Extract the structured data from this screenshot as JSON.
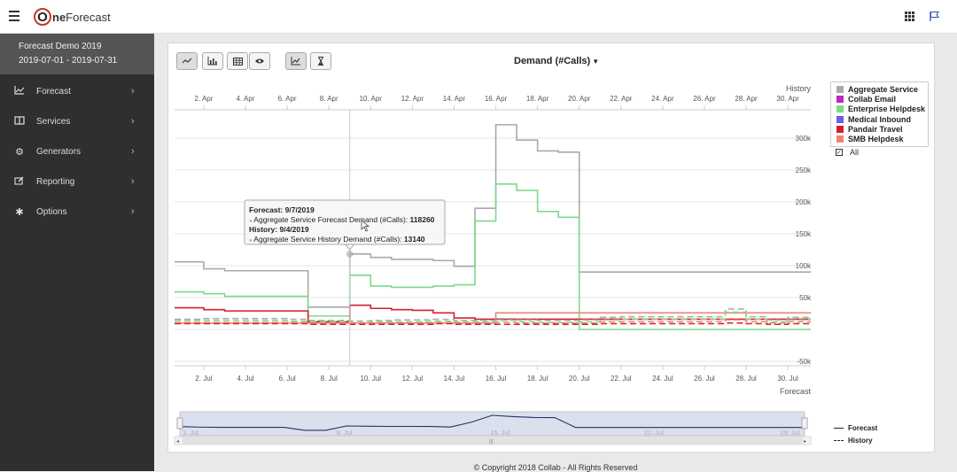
{
  "header": {
    "logo_o": "O",
    "logo_ne": "ne",
    "logo_forecast": "Forecast"
  },
  "sidebar": {
    "title": "Forecast Demo 2019",
    "date_range": "2019-07-01 - 2019-07-31",
    "items": [
      {
        "label": "Forecast",
        "icon": "line-chart-icon"
      },
      {
        "label": "Services",
        "icon": "columns-icon"
      },
      {
        "label": "Generators",
        "icon": "cogs-icon"
      },
      {
        "label": "Reporting",
        "icon": "edit-icon"
      },
      {
        "label": "Options",
        "icon": "gear-icon"
      }
    ]
  },
  "chart_title": "Demand (#Calls)",
  "legend": {
    "items": [
      {
        "label": "Aggregate Service",
        "color": "#a9a9a9"
      },
      {
        "label": "Collab Email",
        "color": "#c026c0"
      },
      {
        "label": "Enterprise Helpdesk",
        "color": "#7ed98a"
      },
      {
        "label": "Medical Inbound",
        "color": "#6a5de6"
      },
      {
        "label": "Pandair Travel",
        "color": "#d61f2c"
      },
      {
        "label": "SMB Helpdesk",
        "color": "#ee8470"
      }
    ],
    "all_label": "All",
    "forecast_label": "Forecast",
    "history_label": "History"
  },
  "tooltip": {
    "forecast_title": "Forecast: 9/7/2019",
    "forecast_label": "Aggregate Service Forecast Demand (#Calls):",
    "forecast_value": "118260",
    "history_title": "History: 9/4/2019",
    "history_label": "Aggregate Service History Demand (#Calls):",
    "history_value": "13140"
  },
  "navigator": {
    "ticks": [
      "1. Jul",
      "8. Jul",
      "15. Jul",
      "22. Jul",
      "29. Jul"
    ]
  },
  "footer": "© Copyright 2018 Collab - All Rights Reserved",
  "chart_data": {
    "type": "line",
    "title": "Demand (#Calls)",
    "top_axis_title": "History",
    "bottom_axis_title": "Forecast",
    "top_ticks": [
      "2. Apr",
      "4. Apr",
      "6. Apr",
      "8. Apr",
      "10. Apr",
      "12. Apr",
      "14. Apr",
      "16. Apr",
      "18. Apr",
      "20. Apr",
      "22. Apr",
      "24. Apr",
      "26. Apr",
      "28. Apr",
      "30. Apr"
    ],
    "bottom_ticks": [
      "2. Jul",
      "4. Jul",
      "6. Jul",
      "8. Jul",
      "10. Jul",
      "12. Jul",
      "14. Jul",
      "16. Jul",
      "18. Jul",
      "20. Jul",
      "22. Jul",
      "24. Jul",
      "26. Jul",
      "28. Jul",
      "30. Jul"
    ],
    "y_ticks": [
      "300k",
      "250k",
      "200k",
      "150k",
      "100k",
      "50k",
      "-50k"
    ],
    "ylim": [
      -50000,
      300000
    ],
    "x_forecast_days": [
      1,
      2,
      3,
      4,
      5,
      6,
      7,
      8,
      9,
      10,
      11,
      12,
      13,
      14,
      15,
      16,
      17,
      18,
      19,
      20,
      21,
      22,
      23,
      24,
      25,
      26,
      27,
      28,
      29,
      30,
      31
    ],
    "series": [
      {
        "name": "Aggregate Service",
        "kind": "forecast",
        "color": "#a9a9a9",
        "values": [
          106000,
          95000,
          92000,
          92000,
          92000,
          92000,
          35000,
          35000,
          118260,
          113000,
          110000,
          110000,
          108000,
          99000,
          190000,
          321000,
          297000,
          280000,
          278000,
          90000,
          90000,
          90000,
          90000,
          90000,
          90000,
          90000,
          90000,
          90000,
          90000,
          90000,
          90000
        ]
      },
      {
        "name": "Enterprise Helpdesk",
        "kind": "forecast",
        "color": "#7ed98a",
        "values": [
          59000,
          56000,
          52000,
          52000,
          52000,
          52000,
          21000,
          21000,
          85000,
          68000,
          66000,
          66000,
          68000,
          70000,
          170000,
          228000,
          218000,
          185000,
          176000,
          0,
          0,
          0,
          0,
          0,
          0,
          0,
          0,
          0,
          0,
          0,
          0
        ]
      },
      {
        "name": "Pandair Travel",
        "kind": "forecast",
        "color": "#d61f2c",
        "values": [
          34000,
          31000,
          29000,
          29000,
          29000,
          29000,
          12000,
          12000,
          38000,
          33000,
          31000,
          30000,
          26000,
          18000,
          16000,
          16000,
          16000,
          16000,
          16000,
          16000,
          16000,
          16000,
          16000,
          16000,
          16000,
          16000,
          16000,
          16000,
          16000,
          16000,
          16000
        ]
      },
      {
        "name": "SMB Helpdesk",
        "kind": "forecast",
        "color": "#ee8470",
        "values": [
          10000,
          10000,
          10000,
          10000,
          10000,
          10000,
          10000,
          10000,
          10000,
          10000,
          10000,
          10000,
          10000,
          10000,
          10000,
          26000,
          26000,
          26000,
          26000,
          26000,
          26000,
          26000,
          26000,
          26000,
          26000,
          26000,
          26000,
          26000,
          26000,
          26000,
          26000
        ]
      },
      {
        "name": "Aggregate Service",
        "kind": "history",
        "color": "#a9a9a9",
        "values": [
          16000,
          17000,
          17000,
          17000,
          17000,
          16000,
          14000,
          14000,
          13140,
          14000,
          15000,
          15000,
          16000,
          14000,
          14000,
          17000,
          15000,
          14000,
          14000,
          15000,
          19000,
          20000,
          20000,
          20000,
          20000,
          20000,
          32000,
          20000,
          15000,
          19000,
          20000
        ]
      },
      {
        "name": "Enterprise Helpdesk",
        "kind": "history",
        "color": "#7ed98a",
        "values": [
          14000,
          14000,
          14000,
          14000,
          14000,
          13000,
          12000,
          12000,
          11000,
          12000,
          12000,
          12000,
          13000,
          12000,
          12000,
          14000,
          12000,
          11000,
          11000,
          12000,
          15000,
          16000,
          16000,
          16000,
          16000,
          16000,
          27000,
          16000,
          12000,
          15000,
          16000
        ]
      },
      {
        "name": "Pandair Travel",
        "kind": "history",
        "color": "#d61f2c",
        "values": [
          9000,
          9000,
          9000,
          9000,
          9000,
          9000,
          8000,
          8000,
          8000,
          8000,
          8000,
          8000,
          9000,
          8000,
          8000,
          8000,
          8000,
          8000,
          8000,
          8000,
          9000,
          9000,
          9000,
          9000,
          9000,
          9000,
          10000,
          9000,
          8000,
          9000,
          9000
        ]
      },
      {
        "name": "SMB Helpdesk",
        "kind": "history",
        "color": "#ee8470",
        "values": [
          11000,
          11000,
          11000,
          11000,
          11000,
          11000,
          10000,
          10000,
          10000,
          10000,
          10000,
          10000,
          11000,
          10000,
          10000,
          11000,
          10000,
          10000,
          10000,
          10000,
          12000,
          12000,
          12000,
          12000,
          12000,
          12000,
          15000,
          12000,
          10000,
          12000,
          12000
        ]
      }
    ],
    "hover_day": 9,
    "grid": true,
    "legend_position": "right"
  }
}
